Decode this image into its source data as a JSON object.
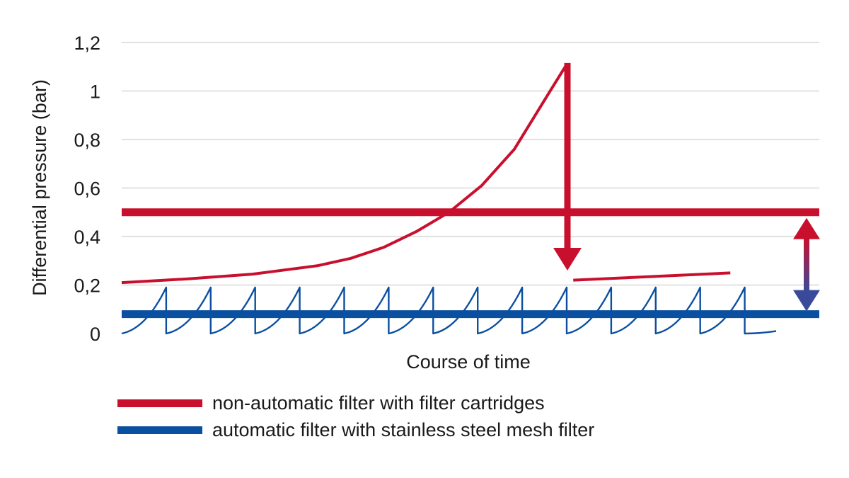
{
  "chart_data": {
    "type": "line",
    "xlabel": "Course of time",
    "ylabel": "Differential pressure (bar)",
    "ylim": [
      0,
      1.2
    ],
    "y_ticks": [
      {
        "value": 0,
        "label": "0"
      },
      {
        "value": 0.2,
        "label": "0,2"
      },
      {
        "value": 0.4,
        "label": "0,4"
      },
      {
        "value": 0.6,
        "label": "0,6"
      },
      {
        "value": 0.8,
        "label": "0,8"
      },
      {
        "value": 1.0,
        "label": "1"
      },
      {
        "value": 1.2,
        "label": "1,2"
      }
    ],
    "grid": true,
    "legend_placement": "bottom",
    "series": [
      {
        "name": "non-automatic filter with filter cartridges",
        "color": "#c8102e",
        "average_level": 0.5,
        "points": [
          [
            0,
            0.21
          ],
          [
            0.1,
            0.225
          ],
          [
            0.2,
            0.245
          ],
          [
            0.3,
            0.28
          ],
          [
            0.35,
            0.31
          ],
          [
            0.4,
            0.355
          ],
          [
            0.45,
            0.42
          ],
          [
            0.5,
            0.5
          ],
          [
            0.55,
            0.61
          ],
          [
            0.6,
            0.76
          ],
          [
            0.65,
            0.98
          ],
          [
            0.68,
            1.11
          ]
        ],
        "after_cleaning": [
          [
            0.69,
            0.22
          ],
          [
            0.93,
            0.25
          ]
        ]
      },
      {
        "name": "automatic filter with stainless steel mesh filter",
        "color": "#0a4fa0",
        "average_level": 0.08,
        "backflush_times": [
          0,
          0.068,
          0.136,
          0.204,
          0.272,
          0.34,
          0.408,
          0.476,
          0.544,
          0.612,
          0.68,
          0.748,
          0.816,
          0.884,
          0.952
        ],
        "peak": 0.19,
        "min": 0
      }
    ],
    "annotations": [
      "pressure-drop-arrow",
      "difference-double-arrow"
    ]
  }
}
